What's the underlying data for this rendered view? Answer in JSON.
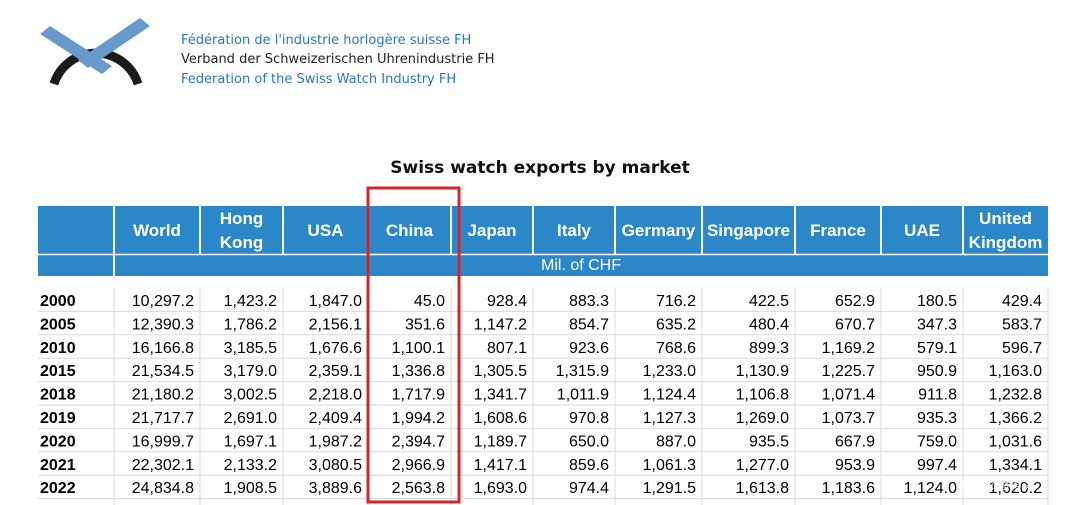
{
  "header": {
    "org_fr": "Fédération de l'industrie horlogère suisse FH",
    "org_de": "Verband der Schweizerischen Uhrenindustrie FH",
    "org_en": "Federation of the Swiss Watch Industry FH"
  },
  "colors": {
    "header_blue": "#2c87c8",
    "highlight": "#d0272a",
    "logo_blue": "#6699cc",
    "logo_dark": "#1a1a1a"
  },
  "chart_data": {
    "type": "table",
    "title": "Swiss watch exports by market",
    "unit": "Mil. of CHF",
    "highlight_column": "China",
    "columns": [
      [
        "World"
      ],
      [
        "Hong",
        "Kong"
      ],
      [
        "USA"
      ],
      [
        "China"
      ],
      [
        "Japan"
      ],
      [
        "Italy"
      ],
      [
        "Germany"
      ],
      [
        "Singapore"
      ],
      [
        "France"
      ],
      [
        "UAE"
      ],
      [
        "United",
        "Kingdom"
      ]
    ],
    "rows": [
      {
        "year": "2000",
        "values": [
          "10,297.2",
          "1,423.2",
          "1,847.0",
          "45.0",
          "928.4",
          "883.3",
          "716.2",
          "422.5",
          "652.9",
          "180.5",
          "429.4"
        ]
      },
      {
        "year": "2005",
        "values": [
          "12,390.3",
          "1,786.2",
          "2,156.1",
          "351.6",
          "1,147.2",
          "854.7",
          "635.2",
          "480.4",
          "670.7",
          "347.3",
          "583.7"
        ]
      },
      {
        "year": "2010",
        "values": [
          "16,166.8",
          "3,185.5",
          "1,676.6",
          "1,100.1",
          "807.1",
          "923.6",
          "768.6",
          "899.3",
          "1,169.2",
          "579.1",
          "596.7"
        ]
      },
      {
        "year": "2015",
        "values": [
          "21,534.5",
          "3,179.0",
          "2,359.1",
          "1,336.8",
          "1,305.5",
          "1,315.9",
          "1,233.0",
          "1,130.9",
          "1,225.7",
          "950.9",
          "1,163.0"
        ]
      },
      {
        "year": "2018",
        "values": [
          "21,180.2",
          "3,002.5",
          "2,218.0",
          "1,717.9",
          "1,341.7",
          "1,011.9",
          "1,124.4",
          "1,106.8",
          "1,071.4",
          "911.8",
          "1,232.8"
        ]
      },
      {
        "year": "2019",
        "values": [
          "21,717.7",
          "2,691.0",
          "2,409.4",
          "1,994.2",
          "1,608.6",
          "970.8",
          "1,127.3",
          "1,269.0",
          "1,073.7",
          "935.3",
          "1,366.2"
        ]
      },
      {
        "year": "2020",
        "values": [
          "16,999.7",
          "1,697.1",
          "1,987.2",
          "2,394.7",
          "1,189.7",
          "650.0",
          "887.0",
          "935.5",
          "667.9",
          "759.0",
          "1,031.6"
        ]
      },
      {
        "year": "2021",
        "values": [
          "22,302.1",
          "2,133.2",
          "3,080.5",
          "2,966.9",
          "1,417.1",
          "859.6",
          "1,061.3",
          "1,277.0",
          "953.9",
          "997.4",
          "1,334.1"
        ]
      },
      {
        "year": "2022",
        "values": [
          "24,834.8",
          "1,908.5",
          "3,889.6",
          "2,563.8",
          "1,693.0",
          "974.4",
          "1,291.5",
          "1,613.8",
          "1,183.6",
          "1,124.0",
          "1,620.2"
        ]
      }
    ]
  },
  "watermark": "值 什么值得买"
}
